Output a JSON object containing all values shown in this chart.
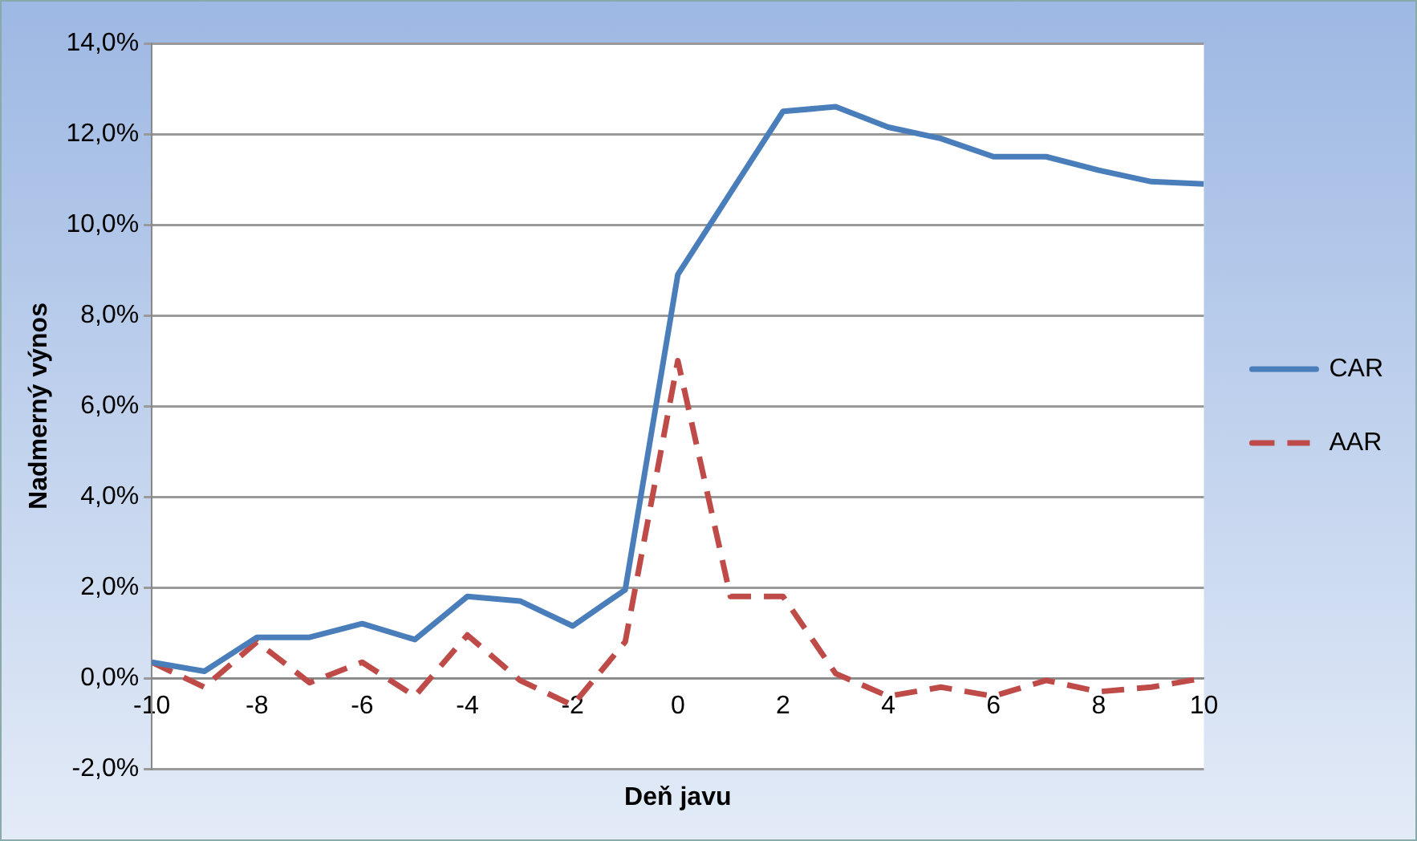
{
  "chart_data": {
    "type": "line",
    "xlabel": "Deň javu",
    "ylabel": "Nadmerný výnos",
    "x": [
      -10,
      -9,
      -8,
      -7,
      -6,
      -5,
      -4,
      -3,
      -2,
      -1,
      0,
      1,
      2,
      3,
      4,
      5,
      6,
      7,
      8,
      9,
      10
    ],
    "series": [
      {
        "name": "CAR",
        "color": "#4a7ebb",
        "line_style": "solid",
        "values": [
          0.35,
          0.15,
          0.9,
          0.9,
          1.2,
          0.85,
          1.8,
          1.7,
          1.15,
          1.95,
          8.9,
          10.7,
          12.5,
          12.6,
          12.15,
          11.9,
          11.5,
          11.5,
          11.2,
          10.95,
          10.9
        ]
      },
      {
        "name": "AAR",
        "color": "#be4b48",
        "line_style": "dashed",
        "values": [
          0.35,
          -0.2,
          0.8,
          -0.1,
          0.35,
          -0.4,
          0.95,
          -0.05,
          -0.6,
          0.8,
          7.0,
          1.8,
          1.8,
          0.1,
          -0.4,
          -0.2,
          -0.4,
          -0.05,
          -0.3,
          -0.2,
          0
        ]
      }
    ],
    "xlim": [
      -10,
      10
    ],
    "xticks": [
      -10,
      -8,
      -6,
      -4,
      -2,
      0,
      2,
      4,
      6,
      8,
      10
    ],
    "ylim": [
      -2,
      14
    ],
    "yticks": [
      {
        "value": -2,
        "label": "-2,0%"
      },
      {
        "value": 0,
        "label": "0,0%"
      },
      {
        "value": 2,
        "label": "2,0%"
      },
      {
        "value": 4,
        "label": "4,0%"
      },
      {
        "value": 6,
        "label": "6,0%"
      },
      {
        "value": 8,
        "label": "8,0%"
      },
      {
        "value": 10,
        "label": "10,0%"
      },
      {
        "value": 12,
        "label": "12,0%"
      },
      {
        "value": 14,
        "label": "14,0%"
      }
    ],
    "grid": "y",
    "legend": "right",
    "marker": "none"
  }
}
